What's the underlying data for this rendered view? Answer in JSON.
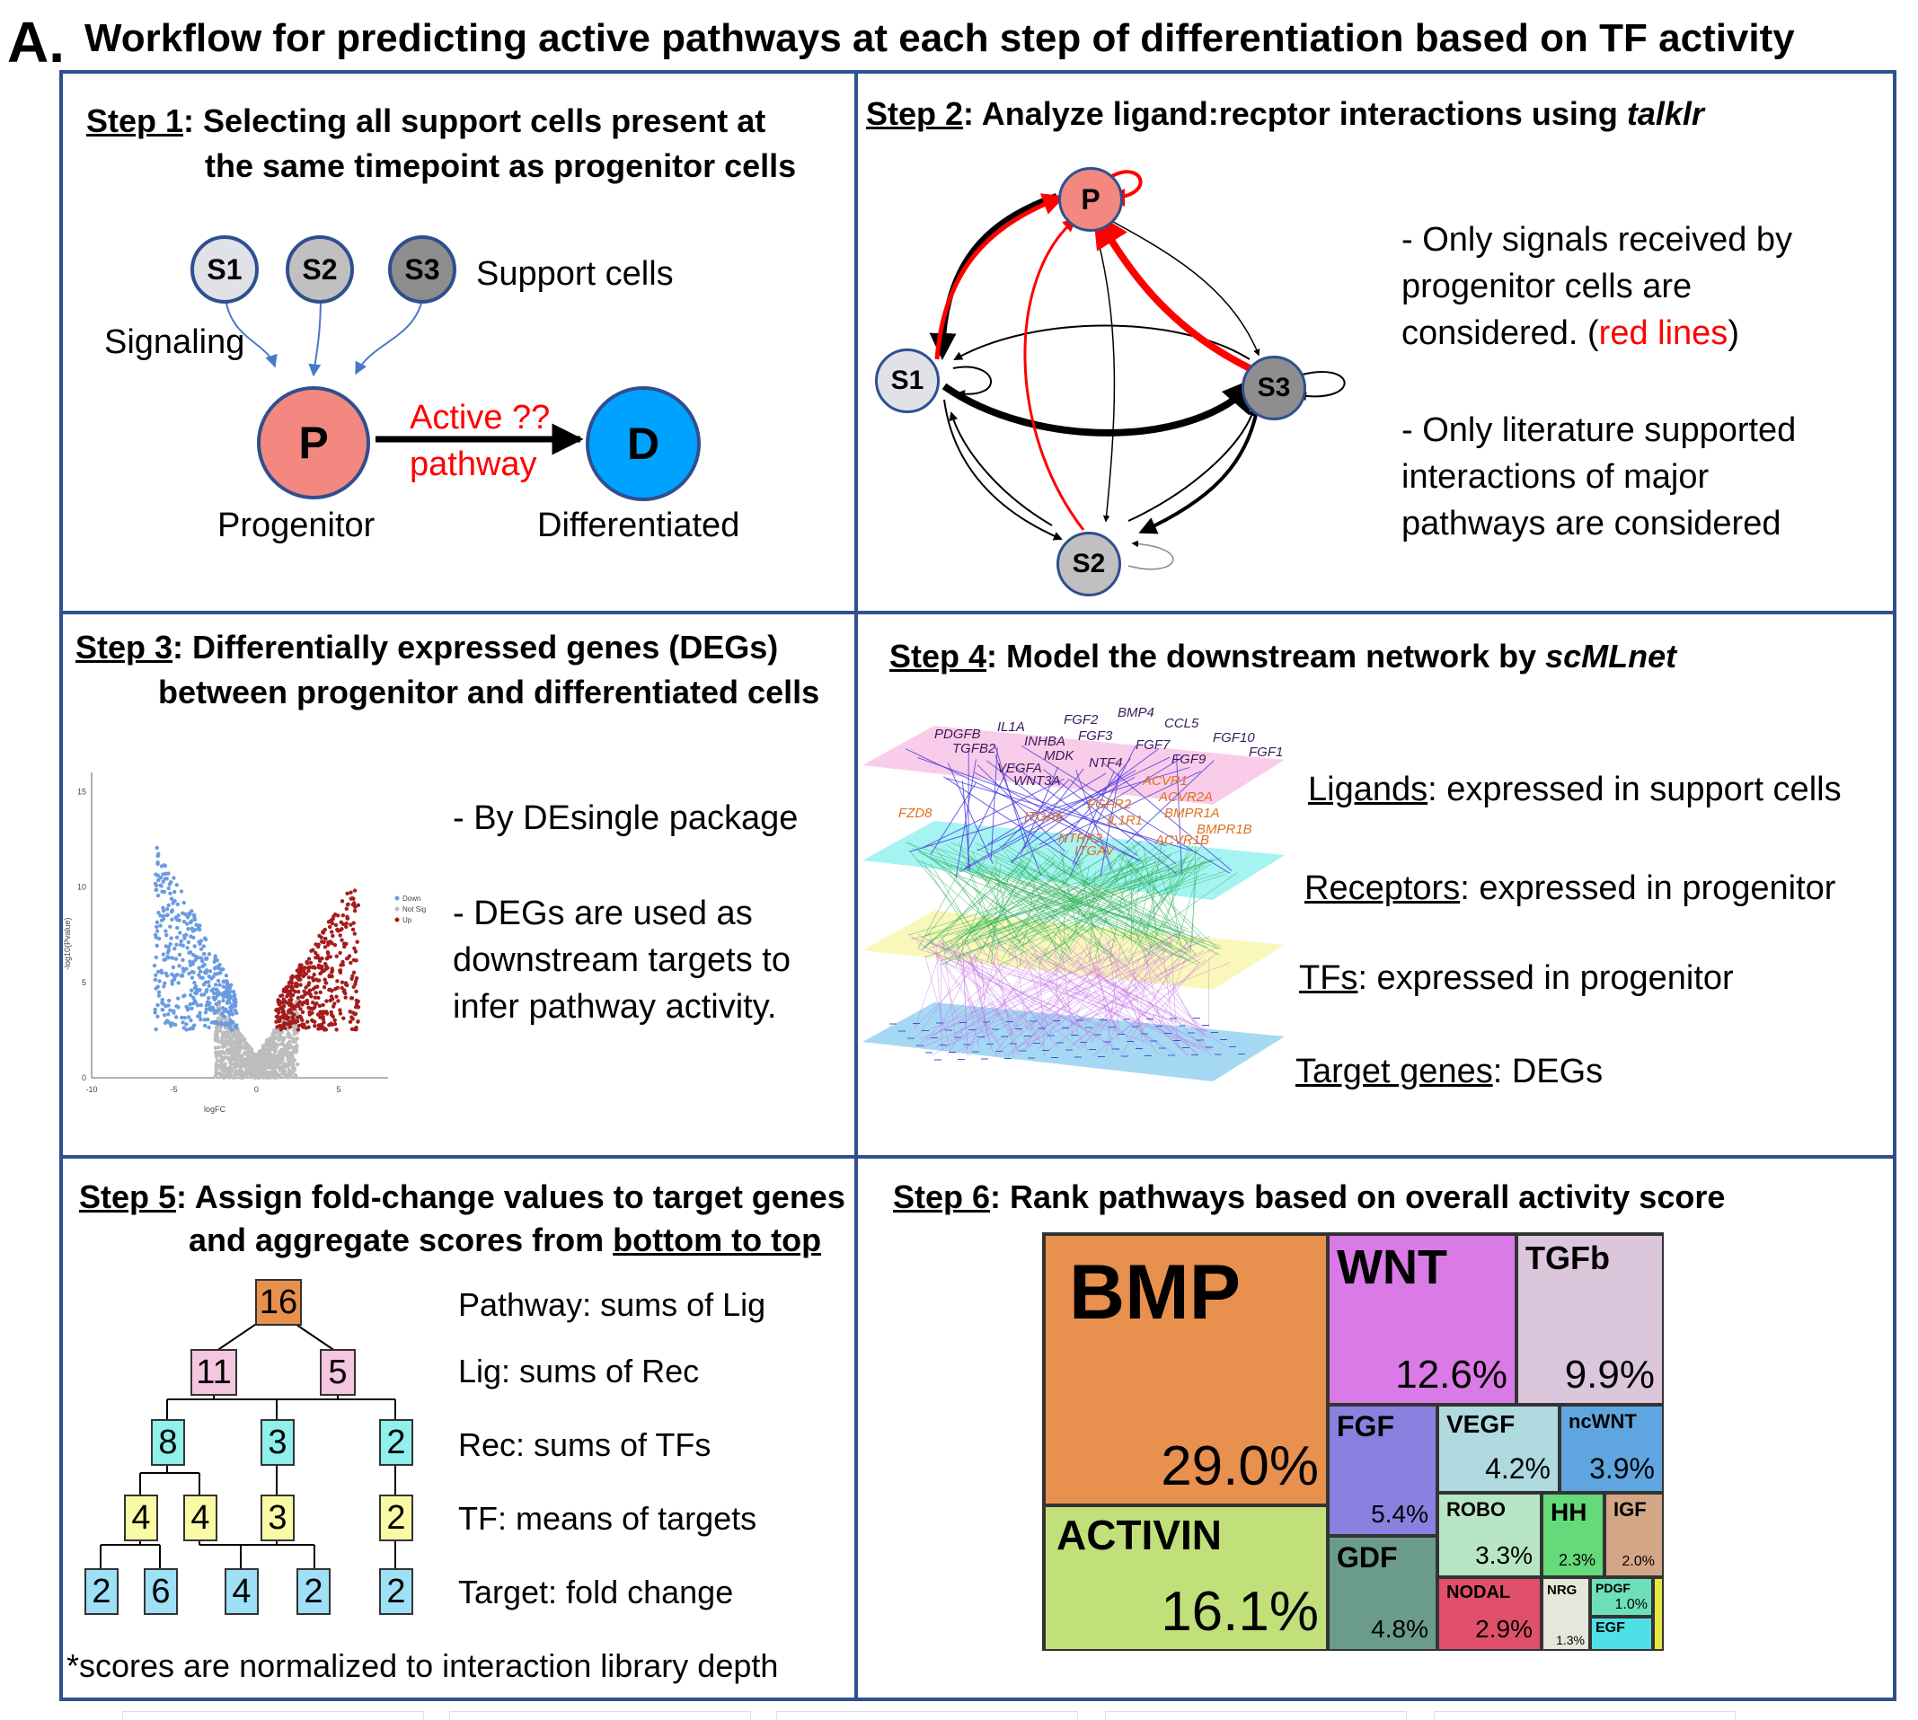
{
  "header": {
    "letter": "A.",
    "title": "Workflow for predicting active pathways at each step of differentiation based on TF activity"
  },
  "step1": {
    "label": "Step 1",
    "title1": ": Selecting all support cells present at",
    "title2": "the same timepoint as progenitor cells",
    "nodes": {
      "s1": "S1",
      "s2": "S2",
      "s3": "S3",
      "p": "P",
      "d": "D"
    },
    "support_cells": "Support cells",
    "signaling": "Signaling",
    "active": "Active ??",
    "pathway": "pathway",
    "progenitor": "Progenitor",
    "differentiated": "Differentiated"
  },
  "step2": {
    "label": "Step 2",
    "title": ": Analyze ligand:recptor interactions using ",
    "tool": "talklr",
    "nodes": {
      "p": "P",
      "s1": "S1",
      "s2": "S2",
      "s3": "S3"
    },
    "note1_l1": "- Only signals received by",
    "note1_l2": "progenitor cells are",
    "note1_l3a": "considered. (",
    "note1_l3b": "red lines",
    "note1_l3c": ")",
    "note2_l1": "- Only literature supported",
    "note2_l2": "interactions of major",
    "note2_l3": "pathways are considered"
  },
  "step3": {
    "label": "Step 3",
    "title1": ": Differentially expressed genes (DEGs)",
    "title2": "between progenitor and differentiated cells",
    "note1": "- By DEsingle package",
    "note2_l1": "- DEGs are used as",
    "note2_l2": "downstream targets to",
    "note2_l3": "infer pathway activity.",
    "plot": {
      "xlabel": "logFC",
      "ylabel": "-log10(Pvalue)",
      "xticks": [
        "-10",
        "-5",
        "0",
        "5"
      ],
      "yticks": [
        "0",
        "5",
        "10",
        "15"
      ],
      "legend": [
        "Down",
        "Not Sig",
        "Up"
      ],
      "colors": {
        "down": "#6a9be0",
        "notsig": "#bdbdbd",
        "up": "#a51c1c"
      }
    }
  },
  "step4": {
    "label": "Step 4",
    "title": ": Model the downstream network by ",
    "tool": "scMLnet",
    "layers": [
      {
        "name": "Ligands",
        "desc": ": expressed in support cells"
      },
      {
        "name": "Receptors",
        "desc": ": expressed in progenitor"
      },
      {
        "name": "TFs",
        "desc": ": expressed in progenitor"
      },
      {
        "name": "Target genes",
        "desc": ": DEGs"
      }
    ],
    "ligands": [
      "PDGFB",
      "IL1A",
      "FGF2",
      "BMP4",
      "CCL5",
      "FGF10",
      "FGF1",
      "TGFB2",
      "INHBA",
      "FGF3",
      "FGF7",
      "FGF9",
      "MDK",
      "VEGFA",
      "NTF4",
      "WNT3A"
    ],
    "receptors": [
      "ACVR1",
      "ACVR2A",
      "FZD8",
      "FGFR2",
      "BMPR1A",
      "BMPR1B",
      "ITGA6",
      "IL1R1",
      "NTRK2",
      "ACVR1B",
      "ITGAV"
    ]
  },
  "step5": {
    "label": "Step 5",
    "title1": ": Assign fold-change values to target genes",
    "title2a": "and aggregate scores from ",
    "title2b": "bottom to top",
    "tree": {
      "pathway": [
        "16"
      ],
      "lig": [
        "11",
        "5"
      ],
      "rec": [
        "8",
        "3",
        "2"
      ],
      "tf": [
        "4",
        "4",
        "3",
        "2"
      ],
      "target": [
        "2",
        "6",
        "4",
        "2",
        "2"
      ]
    },
    "rules": [
      "Pathway: sums of  Lig",
      "Lig: sums of  Rec",
      "Rec: sums of  TFs",
      "TF: means of  targets",
      "Target: fold change"
    ],
    "footnote": "*scores are normalized to interaction library depth"
  },
  "step6": {
    "label": "Step 6",
    "title": ":  Rank pathways based on overall activity score",
    "treemap": [
      {
        "name": "BMP",
        "pct": "29.0%",
        "color": "#e8904e"
      },
      {
        "name": "ACTIVIN",
        "pct": "16.1%",
        "color": "#c2e07a"
      },
      {
        "name": "WNT",
        "pct": "12.6%",
        "color": "#d97ae6"
      },
      {
        "name": "TGFb",
        "pct": "9.9%",
        "color": "#dcc6dc"
      },
      {
        "name": "FGF",
        "pct": "5.4%",
        "color": "#8a80e0"
      },
      {
        "name": "GDF",
        "pct": "4.8%",
        "color": "#6b9c8a"
      },
      {
        "name": "VEGF",
        "pct": "4.2%",
        "color": "#aedae0"
      },
      {
        "name": "ncWNT",
        "pct": "3.9%",
        "color": "#5fa6e0"
      },
      {
        "name": "ROBO",
        "pct": "3.3%",
        "color": "#b8e6c4"
      },
      {
        "name": "HH",
        "pct": "2.3%",
        "color": "#66d97a"
      },
      {
        "name": "IGF",
        "pct": "2.0%",
        "color": "#d4a688"
      },
      {
        "name": "NODAL",
        "pct": "2.9%",
        "color": "#e0506a"
      },
      {
        "name": "NRG",
        "pct": "1.3%",
        "color": "#e6e6da"
      },
      {
        "name": "PDGF",
        "pct": "1.0%",
        "color": "#6ee0b8"
      },
      {
        "name": "EGF",
        "pct": "",
        "color": "#4ee0e6"
      },
      {
        "name": "",
        "pct": "",
        "color": "#e6e640"
      }
    ]
  }
}
